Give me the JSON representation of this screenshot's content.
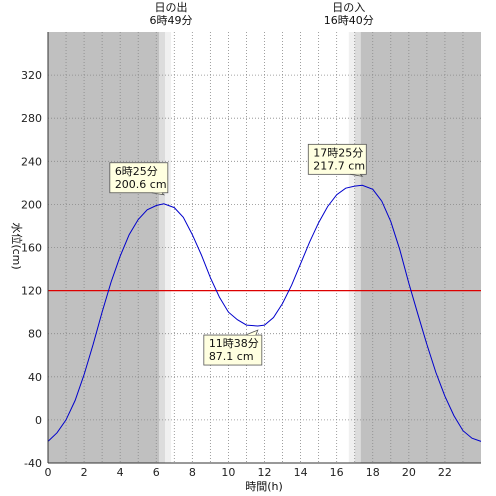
{
  "chart_data": {
    "type": "line",
    "title": "",
    "xlabel": "時間(h)",
    "ylabel": "水位(cm)",
    "xlim": [
      0,
      24
    ],
    "ylim": [
      -40,
      360
    ],
    "x_ticks": [
      0,
      2,
      4,
      6,
      8,
      10,
      12,
      14,
      16,
      18,
      20,
      22
    ],
    "y_ticks": [
      -40,
      0,
      40,
      80,
      120,
      160,
      200,
      240,
      280,
      320
    ],
    "grid": true,
    "sun": {
      "sunrise_label": "日の出",
      "sunrise_time": "6時49分",
      "sunrise_hour": 6.82,
      "sunset_label": "日の入",
      "sunset_time": "16時40分",
      "sunset_hour": 16.67,
      "twilight_hours": 0.67
    },
    "reference_line": {
      "value": 120,
      "color": "#dd0000"
    },
    "series": [
      {
        "color": "#0000cc",
        "x": [
          0,
          0.5,
          1,
          1.5,
          2,
          2.5,
          3,
          3.5,
          4,
          4.5,
          5,
          5.5,
          6,
          6.42,
          7,
          7.5,
          8,
          8.5,
          9,
          9.5,
          10,
          10.5,
          11,
          11.63,
          12,
          12.5,
          13,
          13.5,
          14,
          14.5,
          15,
          15.5,
          16,
          16.5,
          17,
          17.42,
          18,
          18.5,
          19,
          19.5,
          20,
          20.5,
          21,
          21.5,
          22,
          22.5,
          23,
          23.5,
          24
        ],
        "y": [
          -20,
          -12,
          0,
          18,
          42,
          70,
          100,
          128,
          152,
          172,
          186,
          195,
          199,
          200.6,
          197,
          188,
          172,
          153,
          132,
          114,
          100,
          93,
          88,
          87.1,
          88,
          95,
          108,
          125,
          145,
          165,
          183,
          198,
          209,
          215,
          217,
          217.7,
          214,
          203,
          184,
          158,
          127,
          98,
          70,
          44,
          22,
          4,
          -10,
          -17,
          -20
        ]
      }
    ],
    "annotations": [
      {
        "time": "6時25分",
        "value": "200.6 cm",
        "x": 6.42,
        "y": 200.6,
        "side": "above"
      },
      {
        "time": "11時38分",
        "value": "87.1 cm",
        "x": 11.63,
        "y": 87.1,
        "side": "below"
      },
      {
        "time": "17時25分",
        "value": "217.7 cm",
        "x": 17.42,
        "y": 217.7,
        "side": "above"
      }
    ]
  }
}
